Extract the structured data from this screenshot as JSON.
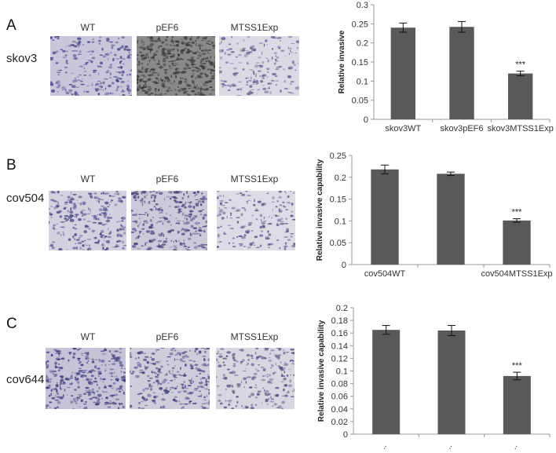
{
  "panels": [
    {
      "letter": "A",
      "cell_line": "skov3",
      "image_labels": [
        "WT",
        "pEF6",
        "MTSS1Exp"
      ]
    },
    {
      "letter": "B",
      "cell_line": "cov504",
      "image_labels": [
        "WT",
        "pEF6",
        "MTSS1Exp"
      ]
    },
    {
      "letter": "C",
      "cell_line": "cov644",
      "image_labels": [
        "WT",
        "pEF6",
        "MTSS1Exp"
      ]
    }
  ],
  "chart_data": [
    {
      "type": "bar",
      "categories": [
        "skov3WT",
        "skov3pEF6",
        "skov3MTSS1Exp"
      ],
      "values": [
        0.24,
        0.242,
        0.12
      ],
      "errors": [
        0.012,
        0.014,
        0.006
      ],
      "ylabel": "Relative invasive",
      "ylim": [
        0,
        0.3
      ],
      "yticks": [
        "0",
        "0.05",
        "0.1",
        "0.15",
        "0.2",
        "0.25",
        "0.3"
      ],
      "annotation": "***",
      "annotation_index": 2
    },
    {
      "type": "bar",
      "categories": [
        "cov504WT",
        "",
        "cov504MTSS1Exp"
      ],
      "values": [
        0.218,
        0.208,
        0.101
      ],
      "errors": [
        0.01,
        0.004,
        0.004
      ],
      "ylabel": "Relative invasive capability",
      "ylim": [
        0,
        0.25
      ],
      "yticks": [
        "0",
        "0.05",
        "0.1",
        "0.15",
        "0.2",
        "0.25"
      ],
      "annotation": "***",
      "annotation_index": 2
    },
    {
      "type": "bar",
      "categories": [
        "co...",
        "co...",
        "co..."
      ],
      "values": [
        0.165,
        0.164,
        0.092
      ],
      "errors": [
        0.007,
        0.008,
        0.006
      ],
      "ylabel": "Relative invasive capability",
      "ylim": [
        0,
        0.2
      ],
      "yticks": [
        "0",
        "0.02",
        "0.04",
        "0.06",
        "0.08",
        "0.1",
        "0.12",
        "0.14",
        "0.16",
        "0.18",
        "0.2"
      ],
      "annotation": "***",
      "annotation_index": 2
    }
  ]
}
